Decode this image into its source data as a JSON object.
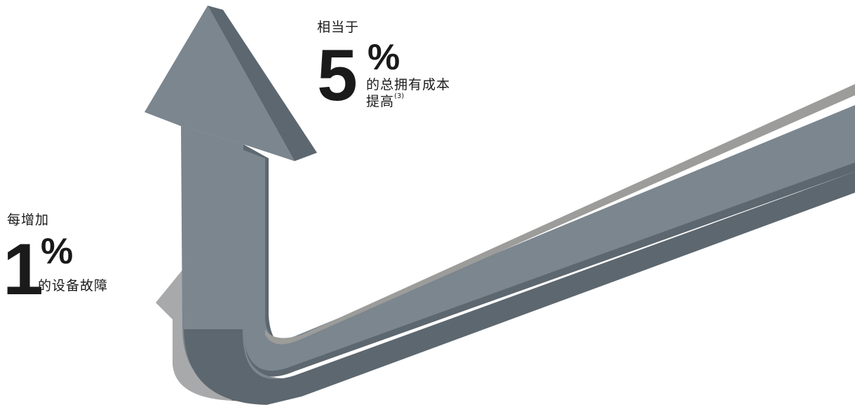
{
  "stats": {
    "left": {
      "lead": "每增加",
      "number": "1",
      "percent": "%",
      "tail": "的设备故障"
    },
    "top": {
      "lead": "相当于",
      "number": "5",
      "percent": "%",
      "tail_line1": "的总拥有成本",
      "tail_line2": "提高",
      "footnote": "(3)"
    }
  },
  "colors": {
    "big_arrow_top": "#7b868f",
    "big_arrow_side": "#5d676f",
    "big_arrow_highlight": "#9c9c9a",
    "small_arrow": "#a8a9ab",
    "small_arrow_light": "#e2e2e2",
    "small_arrow_shadow": "#6e6e6e",
    "text": "#1a1a1a"
  }
}
